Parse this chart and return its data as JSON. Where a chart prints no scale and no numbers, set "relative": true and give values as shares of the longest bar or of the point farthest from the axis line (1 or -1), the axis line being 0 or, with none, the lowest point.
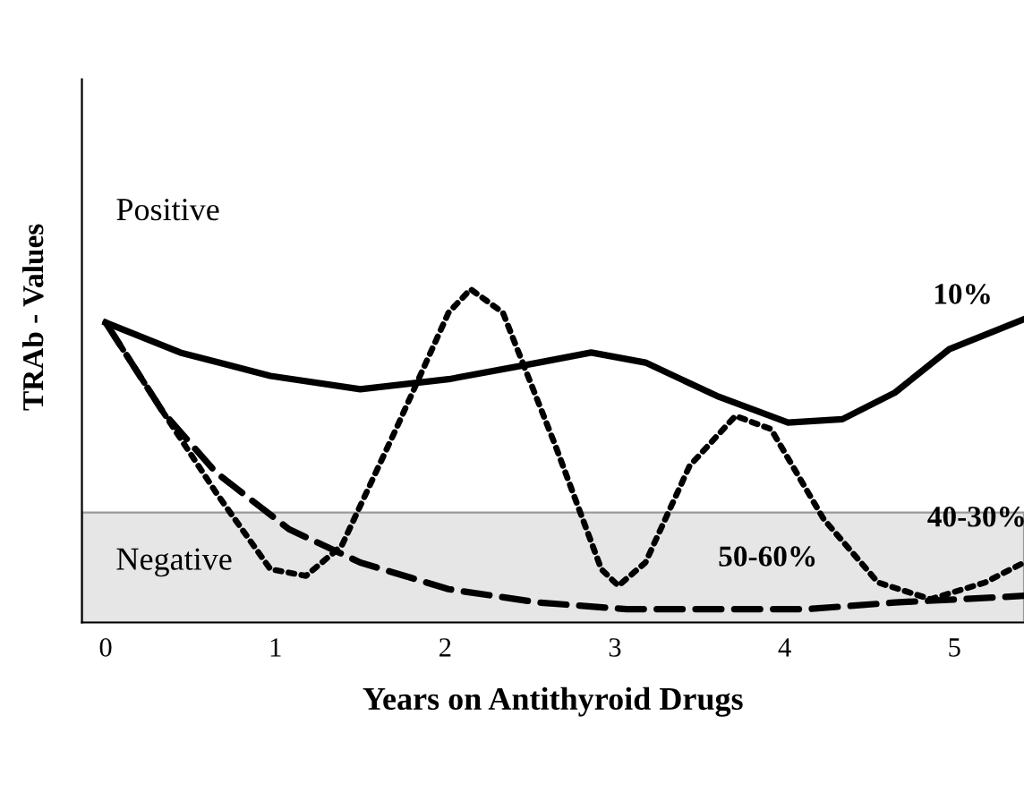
{
  "chart_data": {
    "type": "line",
    "relative": true,
    "xlabel": "Years on Antithyroid Drugs",
    "ylabel": "TRAb - Values",
    "xlim": [
      -0.14,
      5.41
    ],
    "xticks": [
      0,
      1,
      2,
      3,
      4,
      5
    ],
    "grid": false,
    "legend": false,
    "marker": "none",
    "bands": [
      {
        "axis": "y",
        "from": 0,
        "to": 0.33,
        "label": "Negative",
        "color": "#e6e6e6"
      }
    ],
    "annotations": [
      "Positive",
      "10%",
      "40-30%",
      "50-60%"
    ],
    "series": [
      {
        "color": "#000000",
        "line_style": "solid",
        "x": [
          0,
          0.44,
          0.97,
          1.5,
          2.02,
          2.55,
          2.86,
          3.18,
          3.6,
          4.02,
          4.34,
          4.65,
          4.97,
          5.41
        ],
        "values": [
          0.9,
          0.81,
          0.74,
          0.7,
          0.73,
          0.78,
          0.81,
          0.78,
          0.68,
          0.6,
          0.61,
          0.69,
          0.82,
          0.91
        ]
      },
      {
        "color": "#000000",
        "line_style": "dotted",
        "x": [
          0,
          0.34,
          0.65,
          0.97,
          1.18,
          1.39,
          1.71,
          2.02,
          2.15,
          2.34,
          2.65,
          2.92,
          3.02,
          3.18,
          3.44,
          3.71,
          3.92,
          4.23,
          4.55,
          4.86,
          5.18,
          5.41
        ],
        "values": [
          0.9,
          0.63,
          0.39,
          0.16,
          0.14,
          0.23,
          0.58,
          0.93,
          1.0,
          0.93,
          0.53,
          0.16,
          0.11,
          0.18,
          0.47,
          0.62,
          0.58,
          0.31,
          0.12,
          0.07,
          0.12,
          0.18
        ]
      },
      {
        "color": "#000000",
        "line_style": "dashed",
        "x": [
          0,
          0.34,
          0.65,
          1.08,
          1.5,
          2.02,
          2.55,
          3.07,
          3.6,
          4.13,
          4.65,
          5.41
        ],
        "values": [
          0.9,
          0.63,
          0.45,
          0.28,
          0.18,
          0.1,
          0.06,
          0.04,
          0.04,
          0.04,
          0.06,
          0.08
        ]
      }
    ]
  }
}
